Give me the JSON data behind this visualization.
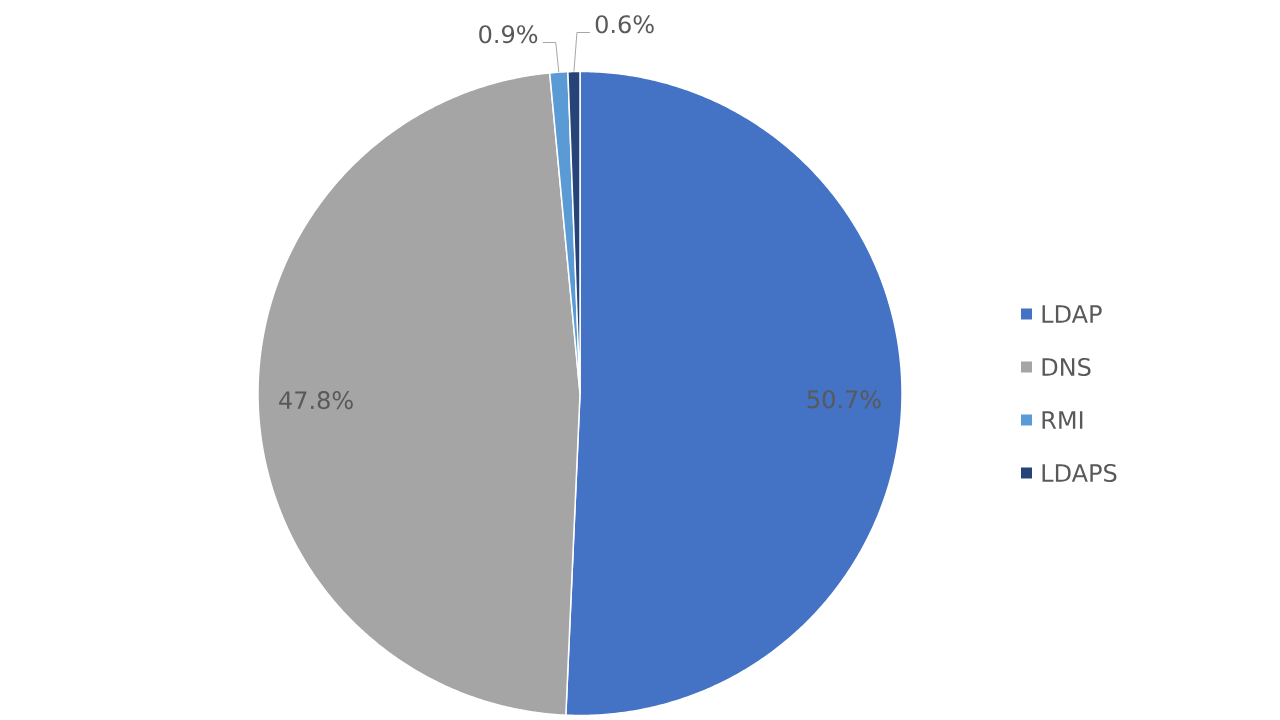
{
  "chart_data": {
    "type": "pie",
    "categories": [
      "LDAP",
      "DNS",
      "RMI",
      "LDAPS"
    ],
    "values": [
      50.7,
      47.8,
      0.9,
      0.6
    ],
    "colors": [
      "#4472c4",
      "#a5a5a5",
      "#5b9bd5",
      "#264478"
    ],
    "value_labels": [
      "50.7%",
      "47.8%",
      "0.9%",
      "0.6%"
    ],
    "legend": "right"
  }
}
